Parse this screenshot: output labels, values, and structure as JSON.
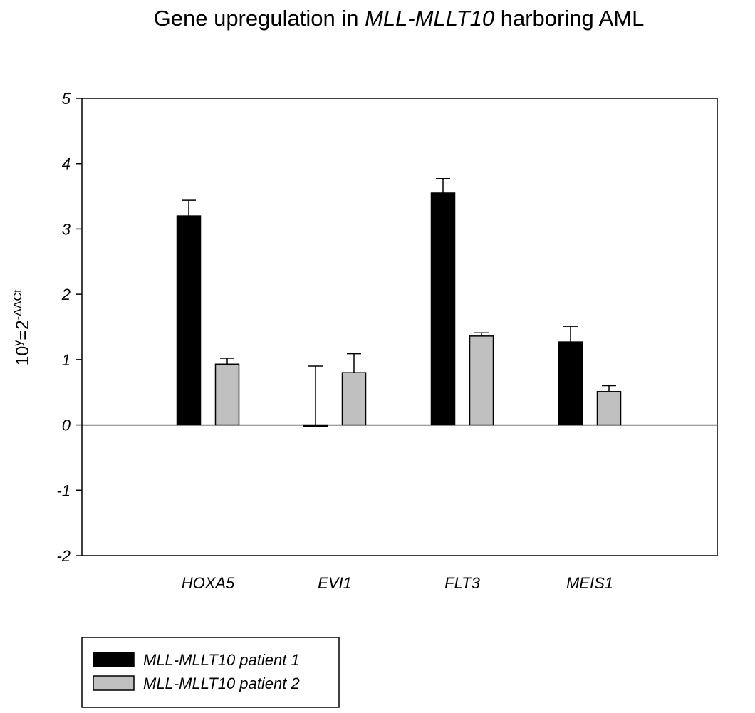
{
  "chart_data": {
    "type": "bar",
    "title": {
      "prefix": "Gene upregulation in ",
      "italic": "MLL-MLLT10",
      "suffix": " harboring AML"
    },
    "ylabel": {
      "base": "10",
      "exp1": "y",
      "mid": "=2",
      "exp2": "-ΔΔCt"
    },
    "xlabel": "",
    "ylim": [
      -2,
      5
    ],
    "yticks": [
      "-2",
      "-1",
      "0",
      "1",
      "2",
      "3",
      "4",
      "5"
    ],
    "categories": [
      "HOXA5",
      "EVI1",
      "FLT3",
      "MEIS1"
    ],
    "series": [
      {
        "name": "MLL-MLLT10 patient 1",
        "color": "#000000",
        "values": [
          3.2,
          -0.02,
          3.55,
          1.27
        ],
        "errors": [
          0.24,
          0.92,
          0.22,
          0.24
        ]
      },
      {
        "name": "MLL-MLLT10 patient 2",
        "color": "#c0c0c0",
        "values": [
          0.93,
          0.8,
          1.36,
          0.51
        ],
        "errors": [
          0.09,
          0.29,
          0.05,
          0.09
        ]
      }
    ],
    "grid": false,
    "legend": "bottom-left"
  }
}
